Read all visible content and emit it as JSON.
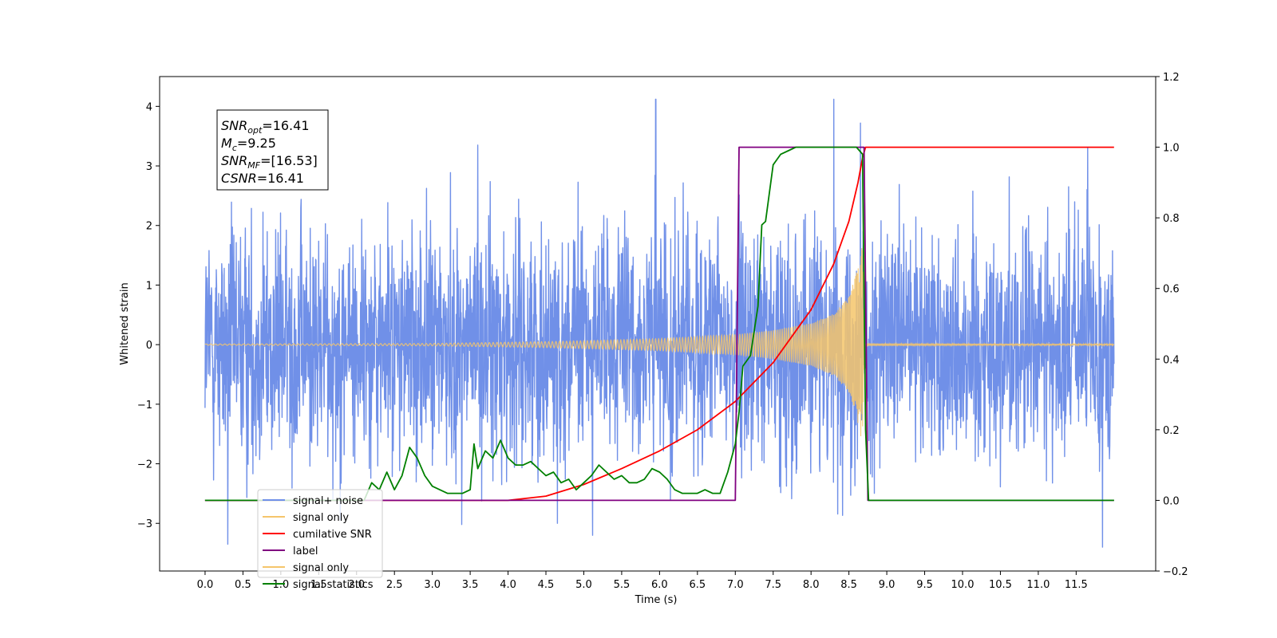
{
  "chart_data": {
    "type": "line",
    "xlabel": "Time (s)",
    "ylabel_left": "Whitened strain",
    "ylabel_right": "",
    "xlim": [
      -0.6,
      12.55
    ],
    "ylim_left": [
      -3.8,
      4.5
    ],
    "ylim_right": [
      -0.2,
      1.2
    ],
    "x_ticks": [
      0.0,
      0.5,
      1.0,
      1.5,
      2.0,
      2.5,
      3.0,
      3.5,
      4.0,
      4.5,
      5.0,
      5.5,
      6.0,
      6.5,
      7.0,
      7.5,
      8.0,
      8.5,
      9.0,
      9.5,
      10.0,
      10.5,
      11.0,
      11.5
    ],
    "x_tick_labels": [
      "0.0",
      "0.5",
      "1.0",
      "1.5",
      "2.0",
      "2.5",
      "3.0",
      "3.5",
      "4.0",
      "4.5",
      "5.0",
      "5.5",
      "6.0",
      "6.5",
      "7.0",
      "7.5",
      "8.0",
      "8.5",
      "9.0",
      "9.5",
      "10.0",
      "10.5",
      "11.0",
      "11.5"
    ],
    "y_left_ticks": [
      -3,
      -2,
      -1,
      0,
      1,
      2,
      3,
      4
    ],
    "y_left_tick_labels": [
      "−3",
      "−2",
      "−1",
      "0",
      "1",
      "2",
      "3",
      "4"
    ],
    "y_right_ticks": [
      -0.2,
      0.0,
      0.2,
      0.4,
      0.6,
      0.8,
      1.0,
      1.2
    ],
    "y_right_tick_labels": [
      "−0.2",
      "0.0",
      "0.2",
      "0.4",
      "0.6",
      "0.8",
      "1.0",
      "1.2"
    ],
    "grid": false,
    "legend_position": "lower-left",
    "annotation": {
      "lines": [
        {
          "main": "SNR",
          "sub": "opt",
          "rest": "=16.41"
        },
        {
          "main": "M",
          "sub": "c",
          "rest": "=9.25"
        },
        {
          "main": "SNR",
          "sub": "MF",
          "rest": "=[16.53]"
        },
        {
          "main": "CSNR",
          "sub": "",
          "rest": "=16.41"
        }
      ]
    },
    "series": [
      {
        "name": "signal+ noise",
        "axis": "left",
        "color": "#7090e8",
        "kind": "noise",
        "x_range": [
          0.0,
          12.0
        ],
        "typical_amplitude": 1.3,
        "peak_values": [
          {
            "x": 0.3,
            "y": -3.35
          },
          {
            "x": 1.75,
            "y": 3.25
          },
          {
            "x": 3.6,
            "y": 3.35
          },
          {
            "x": 4.65,
            "y": -3.0
          },
          {
            "x": 5.95,
            "y": 4.12
          },
          {
            "x": 8.3,
            "y": 4.12
          },
          {
            "x": 8.65,
            "y": 3.72
          },
          {
            "x": 11.65,
            "y": 3.3
          },
          {
            "x": 11.85,
            "y": -3.4
          }
        ]
      },
      {
        "name": "signal only",
        "axis": "left",
        "color": "#f5c56b",
        "kind": "chirp",
        "x_range": [
          0.0,
          12.0
        ],
        "envelope": [
          [
            0.0,
            0.01
          ],
          [
            3.0,
            0.02
          ],
          [
            4.5,
            0.05
          ],
          [
            6.0,
            0.1
          ],
          [
            7.0,
            0.17
          ],
          [
            7.5,
            0.24
          ],
          [
            8.0,
            0.36
          ],
          [
            8.3,
            0.52
          ],
          [
            8.5,
            0.8
          ],
          [
            8.6,
            1.2
          ],
          [
            8.68,
            1.7
          ],
          [
            8.7,
            0.02
          ],
          [
            12.0,
            0.01
          ]
        ]
      },
      {
        "name": "cumilative SNR",
        "axis": "right",
        "color": "#ff0000",
        "x": [
          0.0,
          4.0,
          4.5,
          5.0,
          5.5,
          6.0,
          6.5,
          7.0,
          7.5,
          8.0,
          8.3,
          8.5,
          8.62,
          8.68,
          8.72,
          12.0
        ],
        "y": [
          0.0,
          0.0,
          0.012,
          0.045,
          0.09,
          0.14,
          0.2,
          0.28,
          0.39,
          0.54,
          0.67,
          0.79,
          0.9,
          0.97,
          1.0,
          1.0
        ]
      },
      {
        "name": "label",
        "axis": "right",
        "color": "#800080",
        "x": [
          0.0,
          7.0,
          7.05,
          8.7,
          8.75,
          12.0
        ],
        "y": [
          0.0,
          0.0,
          1.0,
          1.0,
          0.0,
          0.0
        ]
      },
      {
        "name": "signal statistics",
        "axis": "right",
        "color": "#008000",
        "x": [
          0.0,
          2.1,
          2.2,
          2.3,
          2.4,
          2.5,
          2.6,
          2.7,
          2.8,
          2.9,
          3.0,
          3.2,
          3.4,
          3.5,
          3.55,
          3.6,
          3.7,
          3.8,
          3.9,
          4.0,
          4.1,
          4.2,
          4.3,
          4.4,
          4.5,
          4.6,
          4.7,
          4.8,
          4.9,
          5.0,
          5.1,
          5.2,
          5.3,
          5.4,
          5.5,
          5.6,
          5.7,
          5.8,
          5.9,
          6.0,
          6.1,
          6.2,
          6.3,
          6.4,
          6.5,
          6.6,
          6.7,
          6.8,
          6.9,
          7.0,
          7.05,
          7.1,
          7.2,
          7.3,
          7.35,
          7.4,
          7.5,
          7.6,
          7.7,
          7.8,
          7.9,
          8.0,
          8.2,
          8.4,
          8.6,
          8.68,
          8.72,
          8.76,
          8.8,
          12.0
        ],
        "y": [
          0.0,
          0.0,
          0.05,
          0.03,
          0.08,
          0.03,
          0.07,
          0.15,
          0.12,
          0.07,
          0.04,
          0.02,
          0.02,
          0.03,
          0.16,
          0.09,
          0.14,
          0.12,
          0.17,
          0.12,
          0.1,
          0.1,
          0.11,
          0.09,
          0.07,
          0.08,
          0.05,
          0.06,
          0.03,
          0.05,
          0.07,
          0.1,
          0.08,
          0.06,
          0.07,
          0.05,
          0.05,
          0.06,
          0.09,
          0.08,
          0.06,
          0.03,
          0.02,
          0.02,
          0.02,
          0.03,
          0.02,
          0.02,
          0.08,
          0.16,
          0.25,
          0.38,
          0.41,
          0.55,
          0.78,
          0.79,
          0.95,
          0.98,
          0.99,
          1.0,
          1.0,
          1.0,
          1.0,
          1.0,
          1.0,
          0.98,
          0.2,
          0.0,
          0.0,
          0.0
        ]
      }
    ],
    "legend": [
      {
        "label": "signal+ noise",
        "color": "#7090e8"
      },
      {
        "label": "signal only",
        "color": "#f5c56b"
      },
      {
        "label": "cumilative SNR",
        "color": "#ff0000"
      },
      {
        "label": "label",
        "color": "#800080"
      },
      {
        "label": "signal only",
        "color": "#f5c56b"
      },
      {
        "label": "signal statistics",
        "color": "#008000"
      }
    ]
  }
}
